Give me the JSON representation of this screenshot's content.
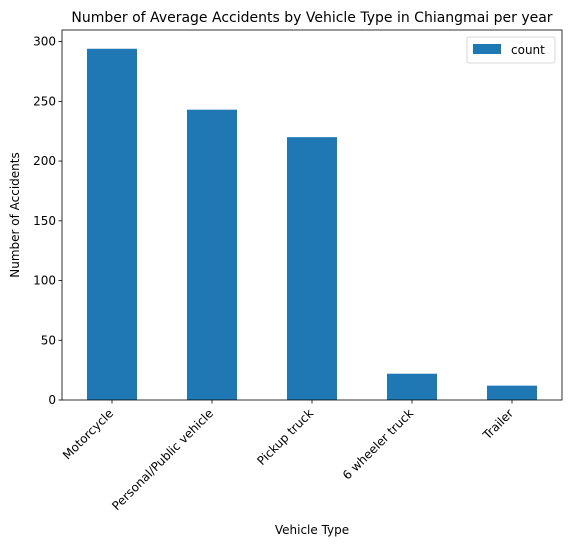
{
  "chart_data": {
    "type": "bar",
    "title": "Number of Average Accidents by Vehicle Type in Chiangmai per year",
    "xlabel": "Vehicle Type",
    "ylabel": "Number of Accidents",
    "categories": [
      "Motorcycle",
      "Personal/Public vehicle",
      "Pickup truck",
      "6 wheeler truck",
      "Trailer"
    ],
    "series": [
      {
        "name": "count",
        "values": [
          294,
          243,
          220,
          22,
          12
        ]
      }
    ],
    "ylim": [
      0,
      309.7
    ],
    "yticks": [
      0,
      50,
      100,
      150,
      200,
      250,
      300
    ],
    "grid": false,
    "legend_position": "upper right",
    "bar_color": "#1f77b4"
  }
}
